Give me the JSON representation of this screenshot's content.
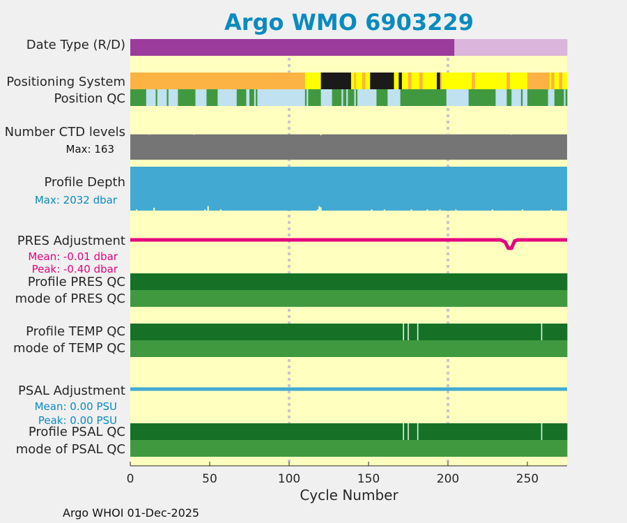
{
  "title": "Argo WMO 6903229",
  "footer": "Argo WHOI 01-Dec-2025",
  "colors": {
    "background": "#f0f0f0",
    "panel": "#ffffc0",
    "title": "#0a8bbf",
    "purple": "#9b3b9b",
    "light_purple": "#dbb5db",
    "orange": "#fdb343",
    "yellow": "#ffff00",
    "black": "#1a1a1a",
    "light_blue": "#c0e1ef",
    "green": "#41993f",
    "dark_green": "#167126",
    "gray": "#757575",
    "blue": "#42aad2",
    "magenta": "#e6007e",
    "grid": "#c8c8c8"
  },
  "chart_data": {
    "type": "timeline",
    "xlabel": "Cycle Number",
    "xlim": [
      0,
      275
    ],
    "xticks": [
      0,
      50,
      100,
      150,
      200,
      250
    ],
    "grid_x": [
      100,
      200
    ],
    "rows": {
      "date_type": {
        "label": "Date Type (R/D)",
        "segments": [
          {
            "x0": 0,
            "x1": 204,
            "color": "#9b3b9b",
            "class": "D"
          },
          {
            "x0": 204,
            "x1": 275,
            "color": "#dbb5db",
            "class": "R"
          }
        ]
      },
      "positioning": {
        "label": "Positioning System",
        "segments": [
          {
            "x0": 0,
            "x1": 110,
            "color": "#fdb343"
          },
          {
            "x0": 110,
            "x1": 120,
            "color": "#ffff00"
          },
          {
            "x0": 120,
            "x1": 139,
            "color": "#1a1a1a"
          },
          {
            "x0": 139,
            "x1": 141,
            "color": "#ffff00"
          },
          {
            "x0": 141,
            "x1": 142,
            "color": "#fdb343"
          },
          {
            "x0": 142,
            "x1": 146,
            "color": "#ffff00"
          },
          {
            "x0": 146,
            "x1": 148,
            "color": "#fdb343"
          },
          {
            "x0": 148,
            "x1": 151,
            "color": "#ffff00"
          },
          {
            "x0": 151,
            "x1": 166,
            "color": "#1a1a1a"
          },
          {
            "x0": 166,
            "x1": 169,
            "color": "#ffff00"
          },
          {
            "x0": 169,
            "x1": 171,
            "color": "#1a1a1a"
          },
          {
            "x0": 171,
            "x1": 175,
            "color": "#ffff00"
          },
          {
            "x0": 175,
            "x1": 177,
            "color": "#fdb343"
          },
          {
            "x0": 177,
            "x1": 182,
            "color": "#ffff00"
          },
          {
            "x0": 182,
            "x1": 184,
            "color": "#fdb343"
          },
          {
            "x0": 184,
            "x1": 193,
            "color": "#ffff00"
          },
          {
            "x0": 193,
            "x1": 195,
            "color": "#1a1a1a"
          },
          {
            "x0": 195,
            "x1": 196,
            "color": "#fdb343"
          },
          {
            "x0": 196,
            "x1": 215,
            "color": "#ffff00"
          },
          {
            "x0": 215,
            "x1": 217,
            "color": "#fdb343"
          },
          {
            "x0": 217,
            "x1": 237,
            "color": "#ffff00"
          },
          {
            "x0": 237,
            "x1": 239,
            "color": "#fdb343"
          },
          {
            "x0": 239,
            "x1": 250,
            "color": "#ffff00"
          },
          {
            "x0": 250,
            "x1": 264,
            "color": "#fdb343"
          },
          {
            "x0": 264,
            "x1": 265,
            "color": "#ffff00"
          },
          {
            "x0": 265,
            "x1": 267,
            "color": "#fdb343"
          },
          {
            "x0": 267,
            "x1": 270,
            "color": "#ffff00"
          },
          {
            "x0": 270,
            "x1": 272,
            "color": "#fdb343"
          },
          {
            "x0": 272,
            "x1": 275,
            "color": "#ffff00"
          }
        ]
      },
      "position_qc": {
        "label": "Position QC",
        "segments": [
          {
            "x0": 0,
            "x1": 10,
            "color": "#41993f"
          },
          {
            "x0": 10,
            "x1": 16,
            "color": "#c0e1ef"
          },
          {
            "x0": 16,
            "x1": 17,
            "color": "#41993f"
          },
          {
            "x0": 17,
            "x1": 23,
            "color": "#c0e1ef"
          },
          {
            "x0": 23,
            "x1": 24,
            "color": "#41993f"
          },
          {
            "x0": 24,
            "x1": 30,
            "color": "#c0e1ef"
          },
          {
            "x0": 30,
            "x1": 41,
            "color": "#41993f"
          },
          {
            "x0": 41,
            "x1": 48,
            "color": "#c0e1ef"
          },
          {
            "x0": 48,
            "x1": 55,
            "color": "#41993f"
          },
          {
            "x0": 55,
            "x1": 67,
            "color": "#c0e1ef"
          },
          {
            "x0": 67,
            "x1": 73,
            "color": "#41993f"
          },
          {
            "x0": 73,
            "x1": 75,
            "color": "#c0e1ef"
          },
          {
            "x0": 75,
            "x1": 78,
            "color": "#41993f"
          },
          {
            "x0": 78,
            "x1": 79,
            "color": "#c0e1ef"
          },
          {
            "x0": 79,
            "x1": 80,
            "color": "#41993f"
          },
          {
            "x0": 80,
            "x1": 110,
            "color": "#c0e1ef"
          },
          {
            "x0": 110,
            "x1": 111,
            "color": "#41993f"
          },
          {
            "x0": 111,
            "x1": 112,
            "color": "#c0e1ef"
          },
          {
            "x0": 112,
            "x1": 120,
            "color": "#41993f"
          },
          {
            "x0": 120,
            "x1": 127,
            "color": "#c0e1ef"
          },
          {
            "x0": 127,
            "x1": 133,
            "color": "#41993f"
          },
          {
            "x0": 133,
            "x1": 134,
            "color": "#c0e1ef"
          },
          {
            "x0": 134,
            "x1": 136,
            "color": "#41993f"
          },
          {
            "x0": 136,
            "x1": 137,
            "color": "#c0e1ef"
          },
          {
            "x0": 137,
            "x1": 141,
            "color": "#41993f"
          },
          {
            "x0": 141,
            "x1": 142,
            "color": "#c0e1ef"
          },
          {
            "x0": 142,
            "x1": 143,
            "color": "#41993f"
          },
          {
            "x0": 143,
            "x1": 155,
            "color": "#c0e1ef"
          },
          {
            "x0": 155,
            "x1": 162,
            "color": "#41993f"
          },
          {
            "x0": 162,
            "x1": 170,
            "color": "#c0e1ef"
          },
          {
            "x0": 170,
            "x1": 199,
            "color": "#41993f"
          },
          {
            "x0": 199,
            "x1": 213,
            "color": "#c0e1ef"
          },
          {
            "x0": 213,
            "x1": 230,
            "color": "#41993f"
          },
          {
            "x0": 230,
            "x1": 237,
            "color": "#c0e1ef"
          },
          {
            "x0": 237,
            "x1": 240,
            "color": "#41993f"
          },
          {
            "x0": 240,
            "x1": 246,
            "color": "#c0e1ef"
          },
          {
            "x0": 246,
            "x1": 247,
            "color": "#41993f"
          },
          {
            "x0": 247,
            "x1": 250,
            "color": "#c0e1ef"
          },
          {
            "x0": 250,
            "x1": 263,
            "color": "#41993f"
          },
          {
            "x0": 263,
            "x1": 267,
            "color": "#c0e1ef"
          },
          {
            "x0": 267,
            "x1": 273,
            "color": "#41993f"
          },
          {
            "x0": 273,
            "x1": 274,
            "color": "#c0e1ef"
          },
          {
            "x0": 274,
            "x1": 275,
            "color": "#41993f"
          }
        ]
      },
      "ctd_levels": {
        "label": "Number CTD levels",
        "note": "Max: 163",
        "max": 163,
        "typical": 160,
        "dips": [
          [
            12,
            158
          ],
          [
            40,
            158
          ],
          [
            120,
            155
          ],
          [
            200,
            158
          ],
          [
            240,
            158
          ]
        ]
      },
      "profile_depth": {
        "label": "Profile Depth",
        "note": "Max: 2032 dbar",
        "max": 2032,
        "typical": 2000,
        "dips": [
          [
            4,
            1950
          ],
          [
            15,
            1870
          ],
          [
            47,
            1950
          ],
          [
            49,
            1800
          ],
          [
            57,
            1950
          ],
          [
            118,
            1950
          ],
          [
            119,
            1800
          ],
          [
            120,
            1850
          ],
          [
            152,
            1950
          ],
          [
            160,
            1950
          ],
          [
            177,
            1950
          ],
          [
            187,
            1950
          ],
          [
            195,
            1950
          ],
          [
            205,
            1950
          ],
          [
            228,
            1950
          ],
          [
            247,
            1950
          ],
          [
            265,
            1950
          ]
        ]
      },
      "pres_adjustment": {
        "label": "PRES Adjustment",
        "mean_label": "Mean: -0.01 dbar",
        "peak_label": "Peak: -0.40 dbar",
        "baseline": 0,
        "dip": [
          [
            233,
            0
          ],
          [
            236,
            -0.1
          ],
          [
            238,
            -0.4
          ],
          [
            240,
            -0.4
          ],
          [
            242,
            -0.05
          ],
          [
            244,
            0
          ]
        ]
      },
      "profile_pres_qc": {
        "label": "Profile PRES QC",
        "segments": [
          {
            "x0": 0,
            "x1": 275,
            "color": "#167126"
          }
        ]
      },
      "mode_pres_qc": {
        "label": "mode of PRES QC",
        "segments": [
          {
            "x0": 0,
            "x1": 275,
            "color": "#41993f"
          }
        ]
      },
      "profile_temp_qc": {
        "label": "Profile TEMP QC",
        "segments": [
          {
            "x0": 0,
            "x1": 275,
            "color": "#167126"
          }
        ],
        "ticks": [
          172,
          175,
          181,
          259
        ]
      },
      "mode_temp_qc": {
        "label": "mode of TEMP QC",
        "segments": [
          {
            "x0": 0,
            "x1": 275,
            "color": "#41993f"
          }
        ]
      },
      "psal_adjustment": {
        "label": "PSAL Adjustment",
        "mean_label": "Mean: 0.00 PSU",
        "peak_label": "Peak: 0.00 PSU"
      },
      "profile_psal_qc": {
        "label": "Profile PSAL QC",
        "segments": [
          {
            "x0": 0,
            "x1": 275,
            "color": "#167126"
          }
        ],
        "ticks": [
          172,
          175,
          181,
          259
        ]
      },
      "mode_psal_qc": {
        "label": "mode of PSAL QC",
        "segments": [
          {
            "x0": 0,
            "x1": 275,
            "color": "#41993f"
          }
        ]
      }
    }
  }
}
